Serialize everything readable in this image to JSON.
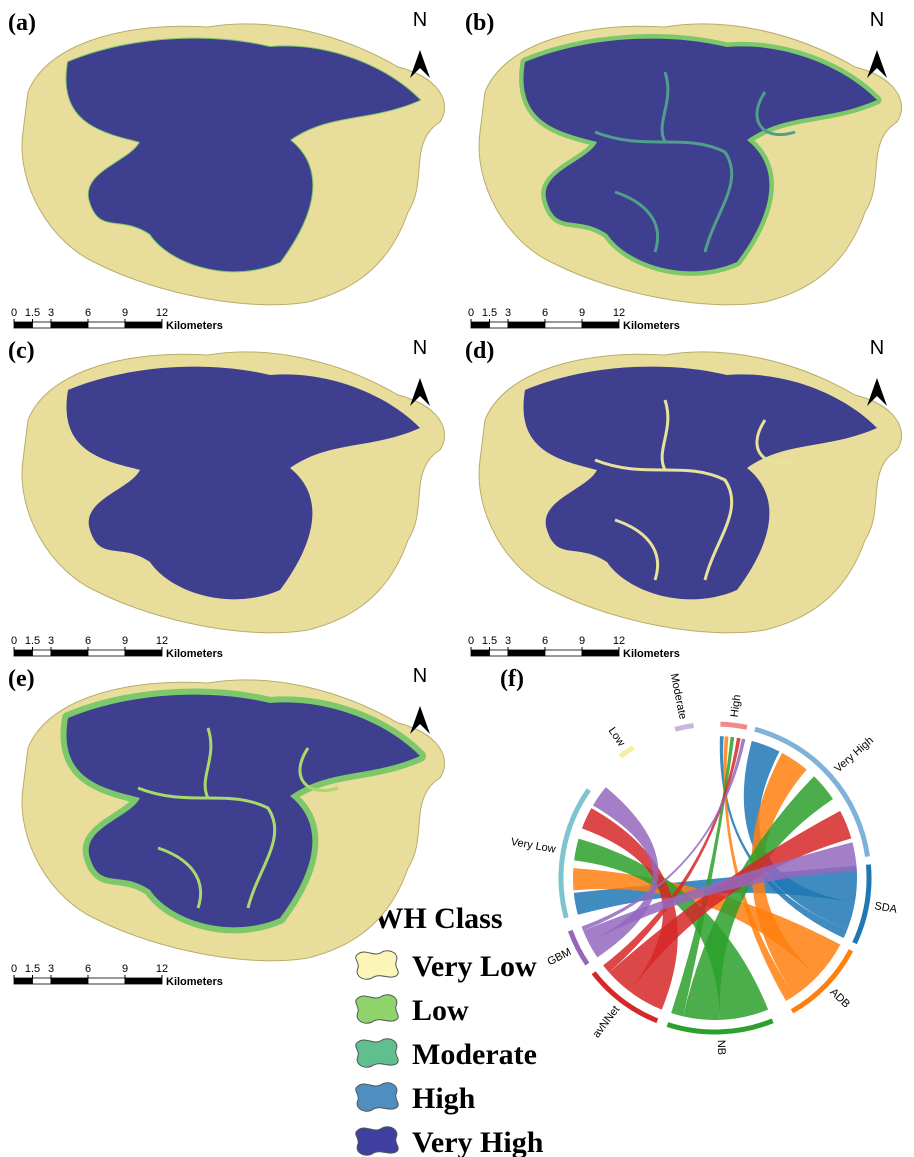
{
  "panels": [
    {
      "label": "(a)",
      "north": "N",
      "scale": {
        "ticks": [
          0,
          1.5,
          3,
          6,
          9,
          12
        ],
        "unit": "Kilometers"
      }
    },
    {
      "label": "(b)",
      "north": "N",
      "scale": {
        "ticks": [
          0,
          1.5,
          3,
          6,
          9,
          12
        ],
        "unit": "Kilometers"
      }
    },
    {
      "label": "(c)",
      "north": "N",
      "scale": {
        "ticks": [
          0,
          1.5,
          3,
          6,
          9,
          12
        ],
        "unit": "Kilometers"
      }
    },
    {
      "label": "(d)",
      "north": "N",
      "scale": {
        "ticks": [
          0,
          1.5,
          3,
          6,
          9,
          12
        ],
        "unit": "Kilometers"
      }
    },
    {
      "label": "(e)",
      "north": "N",
      "scale": {
        "ticks": [
          0,
          1.5,
          3,
          6,
          9,
          12
        ],
        "unit": "Kilometers"
      }
    }
  ],
  "panel_f": {
    "label": "(f)",
    "classes": [
      "Very Low",
      "Low",
      "Moderate",
      "High",
      "Very High"
    ],
    "models": [
      "SDA",
      "ADB",
      "NB",
      "avNNet",
      "GBM"
    ]
  },
  "legend": {
    "title": "FWH Class",
    "items": [
      "Very Low",
      "Low",
      "Moderate",
      "High",
      "Very High"
    ]
  }
}
